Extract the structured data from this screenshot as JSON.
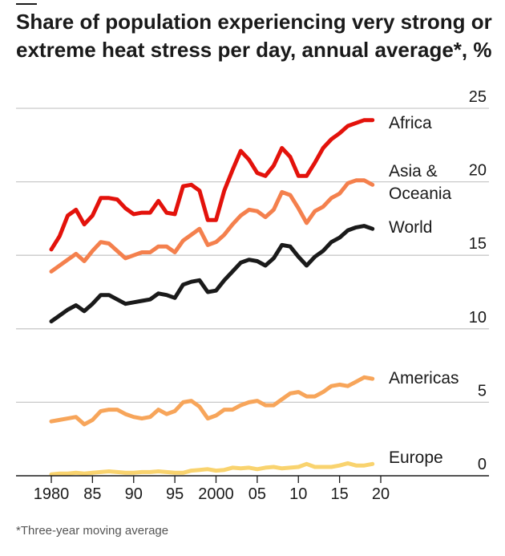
{
  "chart_data": {
    "type": "line",
    "title": "Share of population experiencing very strong or extreme heat stress per day, annual average*, %",
    "footnote": "*Three-year moving average",
    "x": [
      1980,
      1981,
      1982,
      1983,
      1984,
      1985,
      1986,
      1987,
      1988,
      1989,
      1990,
      1991,
      1992,
      1993,
      1994,
      1995,
      1996,
      1997,
      1998,
      1999,
      2000,
      2001,
      2002,
      2003,
      2004,
      2005,
      2006,
      2007,
      2008,
      2009,
      2010,
      2011,
      2012,
      2013,
      2014,
      2015,
      2016,
      2017,
      2018,
      2019,
      2020
    ],
    "x_ticks": [
      {
        "value": 1980,
        "label": "1980"
      },
      {
        "value": 1985,
        "label": "85"
      },
      {
        "value": 1990,
        "label": "90"
      },
      {
        "value": 1995,
        "label": "95"
      },
      {
        "value": 2000,
        "label": "2000"
      },
      {
        "value": 2005,
        "label": "05"
      },
      {
        "value": 2010,
        "label": "10"
      },
      {
        "value": 2015,
        "label": "15"
      },
      {
        "value": 2020,
        "label": "20"
      }
    ],
    "y_ticks": [
      {
        "value": 0,
        "label": "0"
      },
      {
        "value": 5,
        "label": "5"
      },
      {
        "value": 10,
        "label": "10"
      },
      {
        "value": 15,
        "label": "15"
      },
      {
        "value": 20,
        "label": "20"
      },
      {
        "value": 25,
        "label": "25"
      }
    ],
    "xlim": [
      1980,
      2020
    ],
    "ylim": [
      0,
      25
    ],
    "grid": "horizontal",
    "series": [
      {
        "name": "Africa",
        "label_lines": [
          "Africa"
        ],
        "color": "#e3120b",
        "values": [
          15.4,
          16.3,
          17.7,
          18.1,
          17.1,
          17.7,
          18.9,
          18.9,
          18.8,
          18.2,
          17.8,
          17.9,
          17.9,
          18.7,
          17.9,
          17.8,
          19.7,
          19.8,
          19.4,
          17.4,
          17.4,
          19.4,
          20.8,
          22.1,
          21.5,
          20.6,
          20.4,
          21.1,
          22.3,
          21.7,
          20.4,
          20.4,
          21.3,
          22.3,
          22.9,
          23.3,
          23.8,
          24.0,
          24.2,
          24.2,
          null
        ]
      },
      {
        "name": "Asia & Oceania",
        "label_lines": [
          "Asia &",
          "Oceania"
        ],
        "color": "#f4804d",
        "values": [
          13.9,
          14.3,
          14.7,
          15.1,
          14.6,
          15.3,
          15.9,
          15.8,
          15.3,
          14.8,
          15.0,
          15.2,
          15.2,
          15.6,
          15.6,
          15.2,
          16.0,
          16.4,
          16.8,
          15.7,
          15.9,
          16.4,
          17.1,
          17.7,
          18.1,
          18.0,
          17.6,
          18.1,
          19.3,
          19.1,
          18.2,
          17.2,
          18.0,
          18.3,
          18.9,
          19.2,
          19.9,
          20.1,
          20.1,
          19.8,
          null
        ]
      },
      {
        "name": "World",
        "label_lines": [
          "World"
        ],
        "color": "#1a1a1a",
        "values": [
          10.5,
          10.9,
          11.3,
          11.6,
          11.2,
          11.7,
          12.3,
          12.3,
          12.0,
          11.7,
          11.8,
          11.9,
          12.0,
          12.4,
          12.3,
          12.1,
          13.0,
          13.2,
          13.3,
          12.5,
          12.6,
          13.3,
          13.9,
          14.5,
          14.7,
          14.6,
          14.3,
          14.8,
          15.7,
          15.6,
          14.9,
          14.3,
          14.9,
          15.3,
          15.9,
          16.2,
          16.7,
          16.9,
          17.0,
          16.8,
          null
        ]
      },
      {
        "name": "Americas",
        "label_lines": [
          "Americas"
        ],
        "color": "#f7a55a",
        "values": [
          3.7,
          3.8,
          3.9,
          4.0,
          3.5,
          3.8,
          4.4,
          4.5,
          4.5,
          4.2,
          4.0,
          3.9,
          4.0,
          4.5,
          4.2,
          4.4,
          5.0,
          5.1,
          4.7,
          3.9,
          4.1,
          4.5,
          4.5,
          4.8,
          5.0,
          5.1,
          4.8,
          4.8,
          5.2,
          5.6,
          5.7,
          5.4,
          5.4,
          5.7,
          6.1,
          6.2,
          6.1,
          6.4,
          6.7,
          6.6,
          null
        ]
      },
      {
        "name": "Europe",
        "label_lines": [
          "Europe"
        ],
        "color": "#f9d36e",
        "values": [
          0.1,
          0.15,
          0.15,
          0.2,
          0.15,
          0.2,
          0.25,
          0.3,
          0.25,
          0.2,
          0.2,
          0.25,
          0.25,
          0.3,
          0.25,
          0.2,
          0.2,
          0.35,
          0.4,
          0.45,
          0.35,
          0.4,
          0.55,
          0.5,
          0.55,
          0.45,
          0.55,
          0.6,
          0.5,
          0.55,
          0.6,
          0.8,
          0.6,
          0.6,
          0.6,
          0.7,
          0.85,
          0.7,
          0.7,
          0.8,
          null
        ]
      }
    ]
  }
}
